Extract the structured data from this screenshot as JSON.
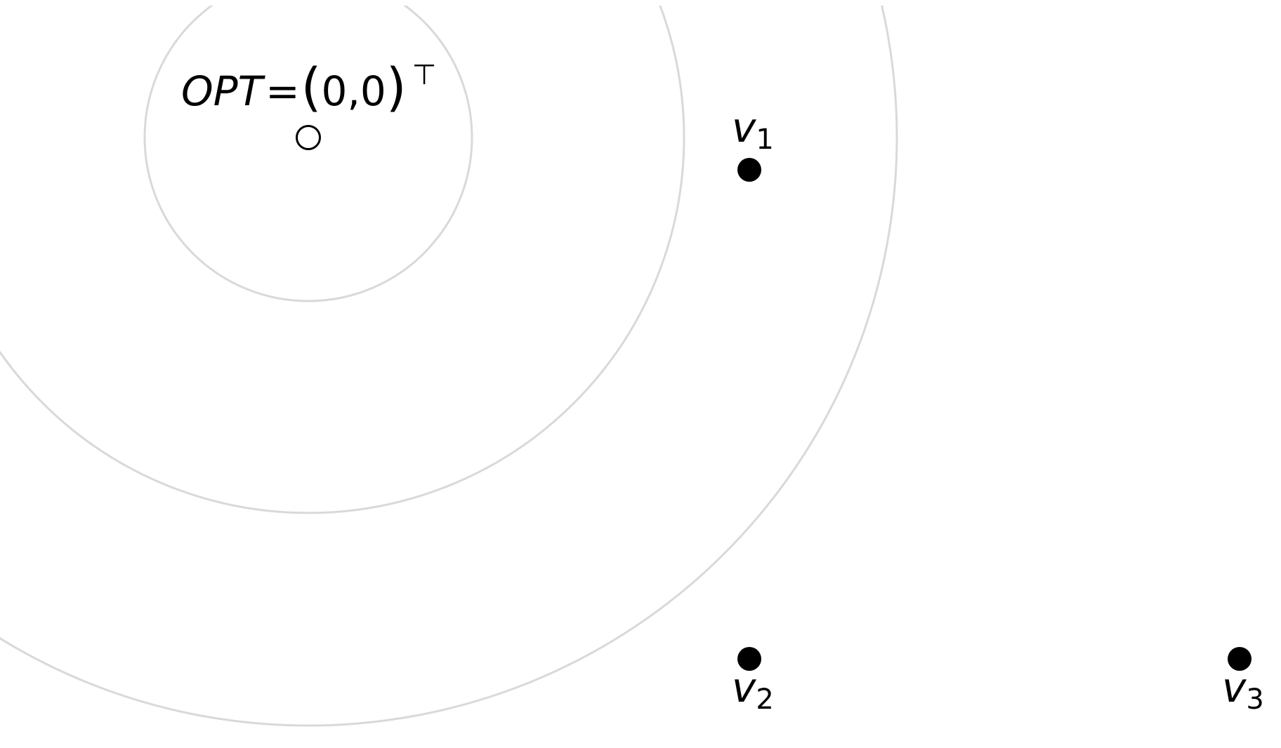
{
  "optimum": {
    "name_label": "OPT",
    "equals": "=",
    "open_paren": "(",
    "coords": "0,0",
    "close_paren": ")",
    "transpose_symbol": "⊤"
  },
  "vertices": [
    {
      "label_base": "v",
      "label_index": "1"
    },
    {
      "label_base": "v",
      "label_index": "2"
    },
    {
      "label_base": "v",
      "label_index": "3"
    }
  ],
  "contour_count": 3,
  "colors": {
    "contour": "#d9d9d9",
    "point_fill": "#000000",
    "optimum_fill": "#ffffff",
    "background": "#ffffff"
  }
}
